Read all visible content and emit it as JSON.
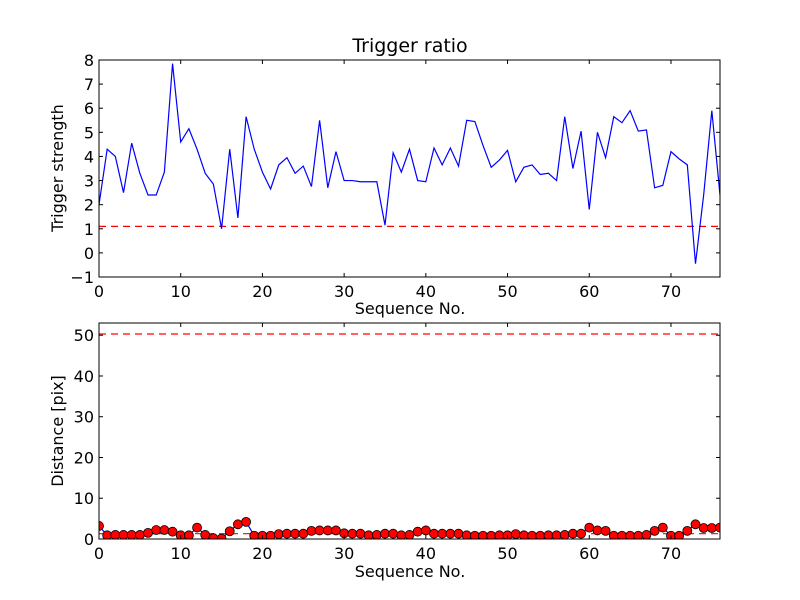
{
  "chart_data": [
    {
      "type": "line",
      "title": "Trigger ratio",
      "xlabel": "Sequence No.",
      "ylabel": "Trigger strength",
      "xlim": [
        0,
        76
      ],
      "ylim": [
        -1,
        8
      ],
      "xticks": [
        0,
        10,
        20,
        30,
        40,
        50,
        60,
        70
      ],
      "yticks": [
        -1,
        0,
        1,
        2,
        3,
        4,
        5,
        6,
        7,
        8
      ],
      "grid": false,
      "colors": {
        "line": "#0000ff",
        "threshold": "#ff0000"
      },
      "series": [
        {
          "x": [
            0,
            1,
            2,
            3,
            4,
            5,
            6,
            7,
            8,
            9,
            10,
            11,
            12,
            13,
            14,
            15,
            16,
            17,
            18,
            19,
            20,
            21,
            22,
            23,
            24,
            25,
            26,
            27,
            28,
            29,
            30,
            31,
            32,
            33,
            34,
            35,
            36,
            37,
            38,
            39,
            40,
            41,
            42,
            43,
            44,
            45,
            46,
            47,
            48,
            49,
            50,
            51,
            52,
            53,
            54,
            55,
            56,
            57,
            58,
            59,
            60,
            61,
            62,
            63,
            64,
            65,
            66,
            67,
            68,
            69,
            70,
            71,
            72,
            73,
            74,
            75,
            76
          ],
          "values": [
            2.0,
            4.3,
            4.0,
            2.5,
            4.55,
            3.3,
            2.4,
            2.4,
            3.35,
            7.85,
            4.6,
            5.15,
            4.3,
            3.3,
            2.85,
            1.0,
            4.3,
            1.45,
            5.65,
            4.3,
            3.35,
            2.65,
            3.65,
            3.95,
            3.3,
            3.6,
            2.75,
            5.5,
            2.7,
            4.2,
            3.0,
            3.0,
            2.95,
            2.95,
            2.95,
            1.15,
            4.15,
            3.35,
            4.3,
            3.0,
            2.95,
            4.35,
            3.65,
            4.35,
            3.6,
            5.5,
            5.45,
            4.45,
            3.55,
            3.85,
            4.25,
            2.95,
            3.55,
            3.65,
            3.25,
            3.3,
            3.0,
            5.65,
            3.5,
            5.05,
            1.8,
            5.0,
            3.95,
            5.65,
            5.4,
            5.9,
            5.05,
            5.1,
            2.7,
            2.8,
            4.2,
            3.9,
            3.65,
            -0.45,
            2.4,
            5.9,
            2.4
          ]
        }
      ],
      "threshold": 1.1
    },
    {
      "type": "scatter",
      "title": "",
      "xlabel": "Sequence No.",
      "ylabel": "Distance [pix]",
      "xlim": [
        0,
        76
      ],
      "ylim": [
        0,
        53
      ],
      "xticks": [
        0,
        10,
        20,
        30,
        40,
        50,
        60,
        70
      ],
      "yticks": [
        0,
        10,
        20,
        30,
        40,
        50
      ],
      "grid": false,
      "colors": {
        "line": "#0000ff",
        "marker": "#ff0000",
        "threshold": "#ff0000"
      },
      "series": [
        {
          "x": [
            0,
            1,
            2,
            3,
            4,
            5,
            6,
            7,
            8,
            9,
            10,
            11,
            12,
            13,
            14,
            15,
            16,
            17,
            18,
            19,
            20,
            21,
            22,
            23,
            24,
            25,
            26,
            27,
            28,
            29,
            30,
            31,
            32,
            33,
            34,
            35,
            36,
            37,
            38,
            39,
            40,
            41,
            42,
            43,
            44,
            45,
            46,
            47,
            48,
            49,
            50,
            51,
            52,
            53,
            54,
            55,
            56,
            57,
            58,
            59,
            60,
            61,
            62,
            63,
            64,
            65,
            66,
            67,
            68,
            69,
            70,
            71,
            72,
            73,
            74,
            75,
            76
          ],
          "values": [
            3.2,
            0.9,
            1.0,
            1.0,
            1.0,
            1.0,
            1.5,
            2.2,
            2.2,
            1.8,
            0.9,
            0.9,
            2.8,
            1.0,
            0.2,
            0.1,
            1.9,
            3.6,
            4.2,
            0.8,
            0.8,
            0.8,
            1.2,
            1.3,
            1.3,
            1.3,
            2.0,
            2.1,
            2.1,
            2.1,
            1.4,
            1.3,
            1.3,
            0.9,
            1.0,
            1.3,
            1.3,
            0.9,
            1.0,
            1.8,
            2.1,
            1.3,
            1.3,
            1.3,
            1.3,
            0.9,
            0.8,
            0.8,
            0.8,
            0.9,
            0.9,
            1.2,
            0.9,
            0.8,
            0.8,
            0.9,
            0.9,
            1.0,
            1.3,
            1.3,
            2.8,
            2.1,
            2.0,
            0.8,
            0.8,
            0.8,
            0.8,
            1.0,
            2.0,
            2.8,
            0.8,
            0.8,
            2.0,
            3.6,
            2.7,
            2.7,
            2.8
          ]
        }
      ],
      "thresholds": [
        50.3,
        1.3
      ]
    }
  ]
}
